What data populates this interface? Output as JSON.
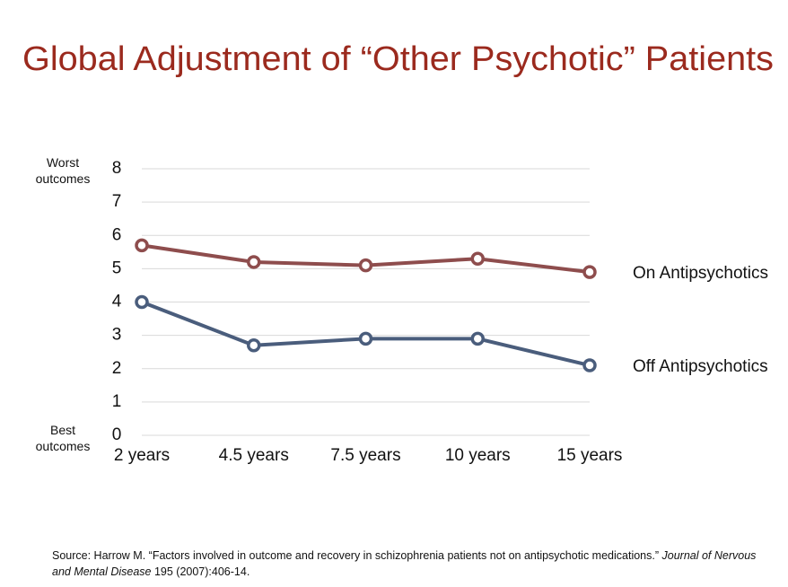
{
  "chart_data": {
    "type": "line",
    "title": "Global Adjustment of “Other Psychotic” Patients",
    "top_annotation": "Worst outcomes",
    "bottom_annotation": "Best outcomes",
    "categories": [
      "2 years",
      "4.5 years",
      "7.5 years",
      "10 years",
      "15 years"
    ],
    "series": [
      {
        "name": "On Antipsychotics",
        "color": "#8e4d4d",
        "values": [
          5.7,
          5.2,
          5.1,
          5.3,
          4.9
        ]
      },
      {
        "name": "Off Antipsychotics",
        "color": "#4a5d7c",
        "values": [
          4.0,
          2.7,
          2.9,
          2.9,
          2.1
        ]
      }
    ],
    "ylim": [
      0,
      8
    ],
    "yticks": [
      0,
      1,
      2,
      3,
      4,
      5,
      6,
      7,
      8
    ],
    "grid": true,
    "title_color": "#9b2a1e",
    "source": [
      "Source: Harrow M. “Factors involved in outcome and recovery in schizophrenia patients not on antipsychotic medications.” ",
      "Journal of Nervous and Mental Disease",
      " 195 (2007):406-14."
    ]
  }
}
